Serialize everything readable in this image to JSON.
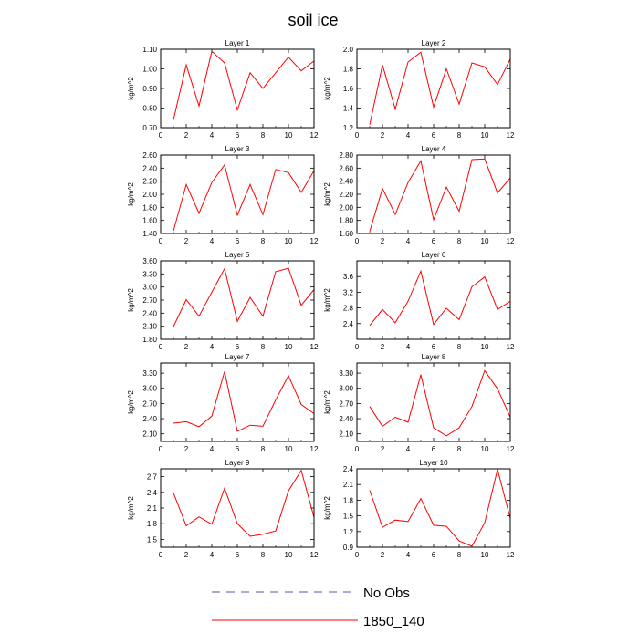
{
  "title": "soil ice",
  "colors": {
    "series": "#ff0000",
    "obs": "#5555aa",
    "frame": "#000000"
  },
  "legend": {
    "placement": "bottom-center",
    "items": [
      {
        "label": "No Obs",
        "style": "dashed",
        "color": "#5555aa"
      },
      {
        "label": "1850_140",
        "style": "solid",
        "color": "#ff0000"
      }
    ]
  },
  "chart_data": [
    {
      "type": "line",
      "title": "Layer 1",
      "ylabel": "kg/m^2",
      "xlim": [
        0,
        12
      ],
      "ylim": [
        0.7,
        1.1
      ],
      "xticks": [
        "0",
        "2",
        "4",
        "6",
        "8",
        "10",
        "12"
      ],
      "yticks": [
        "0.70",
        "0.80",
        "0.90",
        "1.00",
        "1.10"
      ],
      "series": [
        {
          "x": [
            1,
            2,
            3,
            4,
            5,
            6,
            7,
            8,
            9,
            10,
            11,
            12
          ],
          "values": [
            0.74,
            1.02,
            0.81,
            1.09,
            1.03,
            0.79,
            0.98,
            0.9,
            0.98,
            1.06,
            0.99,
            1.04
          ]
        }
      ]
    },
    {
      "type": "line",
      "title": "Layer 2",
      "ylabel": "kg/m^2",
      "xlim": [
        0,
        12
      ],
      "ylim": [
        1.2,
        2.0
      ],
      "xticks": [
        "0",
        "2",
        "4",
        "6",
        "8",
        "10",
        "12"
      ],
      "yticks": [
        "1.2",
        "1.4",
        "1.6",
        "1.8",
        "2.0"
      ],
      "series": [
        {
          "x": [
            1,
            2,
            3,
            4,
            5,
            6,
            7,
            8,
            9,
            10,
            11,
            12
          ],
          "values": [
            1.23,
            1.84,
            1.39,
            1.87,
            1.97,
            1.41,
            1.8,
            1.44,
            1.86,
            1.82,
            1.64,
            1.9
          ]
        }
      ]
    },
    {
      "type": "line",
      "title": "Layer 3",
      "ylabel": "kg/m^2",
      "xlim": [
        0,
        12
      ],
      "ylim": [
        1.4,
        2.6
      ],
      "xticks": [
        "0",
        "2",
        "4",
        "6",
        "8",
        "10",
        "12"
      ],
      "yticks": [
        "1.40",
        "1.60",
        "1.80",
        "2.00",
        "2.20",
        "2.40",
        "2.60"
      ],
      "series": [
        {
          "x": [
            1,
            2,
            3,
            4,
            5,
            6,
            7,
            8,
            9,
            10,
            11,
            12
          ],
          "values": [
            1.44,
            2.15,
            1.71,
            2.18,
            2.45,
            1.68,
            2.15,
            1.69,
            2.38,
            2.33,
            2.03,
            2.36
          ]
        }
      ]
    },
    {
      "type": "line",
      "title": "Layer 4",
      "ylabel": "kg/m^2",
      "xlim": [
        0,
        12
      ],
      "ylim": [
        1.6,
        2.8
      ],
      "xticks": [
        "0",
        "2",
        "4",
        "6",
        "8",
        "10",
        "12"
      ],
      "yticks": [
        "1.60",
        "1.80",
        "2.00",
        "2.20",
        "2.40",
        "2.60",
        "2.80"
      ],
      "series": [
        {
          "x": [
            1,
            2,
            3,
            4,
            5,
            6,
            7,
            8,
            9,
            10,
            11,
            12
          ],
          "values": [
            1.63,
            2.29,
            1.89,
            2.38,
            2.71,
            1.81,
            2.31,
            1.94,
            2.73,
            2.74,
            2.22,
            2.45
          ]
        }
      ]
    },
    {
      "type": "line",
      "title": "Layer 5",
      "ylabel": "kg/m^2",
      "xlim": [
        0,
        12
      ],
      "ylim": [
        1.8,
        3.6
      ],
      "xticks": [
        "0",
        "2",
        "4",
        "6",
        "8",
        "10",
        "12"
      ],
      "yticks": [
        "1.80",
        "2.10",
        "2.40",
        "2.70",
        "3.00",
        "3.30",
        "3.60"
      ],
      "series": [
        {
          "x": [
            1,
            2,
            3,
            4,
            5,
            6,
            7,
            8,
            9,
            10,
            11,
            12
          ],
          "values": [
            2.09,
            2.71,
            2.33,
            2.88,
            3.42,
            2.21,
            2.76,
            2.33,
            3.35,
            3.43,
            2.58,
            2.94
          ]
        }
      ]
    },
    {
      "type": "line",
      "title": "Layer 6",
      "ylabel": "kg/m^2",
      "xlim": [
        0,
        12
      ],
      "ylim": [
        2.0,
        4.0
      ],
      "xticks": [
        "0",
        "2",
        "4",
        "6",
        "8",
        "10",
        "12"
      ],
      "yticks": [
        "2.4",
        "2.8",
        "3.2",
        "3.6"
      ],
      "series": [
        {
          "x": [
            1,
            2,
            3,
            4,
            5,
            6,
            7,
            8,
            9,
            10,
            11,
            12
          ],
          "values": [
            2.35,
            2.76,
            2.42,
            2.97,
            3.74,
            2.38,
            2.79,
            2.5,
            3.34,
            3.59,
            2.76,
            2.97
          ]
        }
      ]
    },
    {
      "type": "line",
      "title": "Layer 7",
      "ylabel": "kg/m^2",
      "xlim": [
        0,
        12
      ],
      "ylim": [
        1.95,
        3.5
      ],
      "xticks": [
        "0",
        "2",
        "4",
        "6",
        "8",
        "10",
        "12"
      ],
      "yticks": [
        "2.10",
        "2.40",
        "2.70",
        "3.00",
        "3.30"
      ],
      "series": [
        {
          "x": [
            1,
            2,
            3,
            4,
            5,
            6,
            7,
            8,
            9,
            10,
            11,
            12
          ],
          "values": [
            2.31,
            2.34,
            2.24,
            2.45,
            3.33,
            2.15,
            2.27,
            2.25,
            2.77,
            3.25,
            2.68,
            2.5
          ]
        }
      ]
    },
    {
      "type": "line",
      "title": "Layer 8",
      "ylabel": "kg/m^2",
      "xlim": [
        0,
        12
      ],
      "ylim": [
        1.95,
        3.5
      ],
      "xticks": [
        "0",
        "2",
        "4",
        "6",
        "8",
        "10",
        "12"
      ],
      "yticks": [
        "2.10",
        "2.40",
        "2.70",
        "3.00",
        "3.30"
      ],
      "series": [
        {
          "x": [
            1,
            2,
            3,
            4,
            5,
            6,
            7,
            8,
            9,
            10,
            11,
            12
          ],
          "values": [
            2.64,
            2.25,
            2.43,
            2.33,
            3.27,
            2.22,
            2.06,
            2.22,
            2.64,
            3.35,
            2.99,
            2.43
          ]
        }
      ]
    },
    {
      "type": "line",
      "title": "Layer 9",
      "ylabel": "kg/m^2",
      "xlim": [
        0,
        12
      ],
      "ylim": [
        1.35,
        2.85
      ],
      "xticks": [
        "0",
        "2",
        "4",
        "6",
        "8",
        "10",
        "12"
      ],
      "yticks": [
        "1.5",
        "1.8",
        "2.1",
        "2.4",
        "2.7"
      ],
      "series": [
        {
          "x": [
            1,
            2,
            3,
            4,
            5,
            6,
            7,
            8,
            9,
            10,
            11,
            12
          ],
          "values": [
            2.39,
            1.76,
            1.93,
            1.79,
            2.48,
            1.8,
            1.56,
            1.6,
            1.66,
            2.43,
            2.82,
            1.92
          ]
        }
      ]
    },
    {
      "type": "line",
      "title": "Layer 10",
      "ylabel": "kg/m^2",
      "xlim": [
        0,
        12
      ],
      "ylim": [
        0.9,
        2.4
      ],
      "xticks": [
        "0",
        "2",
        "4",
        "6",
        "8",
        "10",
        "12"
      ],
      "yticks": [
        "0.9",
        "1.2",
        "1.5",
        "1.8",
        "2.1",
        "2.4"
      ],
      "series": [
        {
          "x": [
            1,
            2,
            3,
            4,
            5,
            6,
            7,
            8,
            9,
            10,
            11,
            12
          ],
          "values": [
            1.99,
            1.28,
            1.42,
            1.39,
            1.83,
            1.32,
            1.3,
            1.02,
            0.92,
            1.37,
            2.39,
            1.45
          ]
        }
      ]
    }
  ]
}
